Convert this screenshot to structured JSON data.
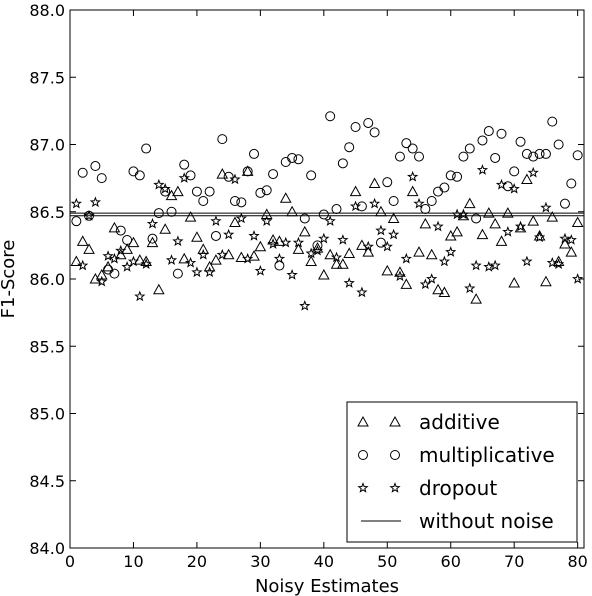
{
  "chart_data": {
    "type": "scatter",
    "xlabel": "Noisy Estimates",
    "ylabel": "F1-Score",
    "xlim": [
      0,
      81
    ],
    "ylim": [
      84.0,
      88.0
    ],
    "xticks": [
      0,
      10,
      20,
      30,
      40,
      50,
      60,
      70,
      80
    ],
    "yticks": [
      84.0,
      84.5,
      85.0,
      85.5,
      86.0,
      86.5,
      87.0,
      87.5,
      88.0
    ],
    "xtick_labels": [
      "0",
      "10",
      "20",
      "30",
      "40",
      "50",
      "60",
      "70",
      "80"
    ],
    "ytick_labels": [
      "84.0",
      "84.5",
      "85.0",
      "85.5",
      "86.0",
      "86.5",
      "87.0",
      "87.5",
      "88.0"
    ],
    "grid": false,
    "legend_position": "bottom-right",
    "reference_lines": [
      {
        "name": "without noise",
        "y": 86.49
      },
      {
        "name": "",
        "y": 86.47
      }
    ],
    "series": [
      {
        "name": "additive",
        "marker": "triangle",
        "x": [
          1,
          2,
          3,
          4,
          5,
          6,
          7,
          8,
          9,
          10,
          11,
          12,
          13,
          14,
          15,
          16,
          17,
          18,
          19,
          20,
          21,
          22,
          23,
          24,
          25,
          26,
          27,
          28,
          29,
          30,
          31,
          32,
          33,
          34,
          35,
          36,
          37,
          38,
          39,
          40,
          41,
          42,
          43,
          44,
          45,
          46,
          47,
          48,
          49,
          50,
          51,
          52,
          53,
          54,
          55,
          56,
          57,
          58,
          59,
          60,
          61,
          62,
          63,
          64,
          65,
          66,
          67,
          68,
          69,
          70,
          71,
          72,
          73,
          74,
          75,
          76,
          77,
          78,
          79,
          80
        ],
        "y": [
          86.13,
          86.28,
          86.22,
          86.0,
          86.03,
          86.09,
          86.38,
          86.18,
          86.22,
          86.27,
          86.14,
          86.13,
          86.27,
          85.92,
          86.37,
          86.62,
          86.65,
          86.15,
          86.46,
          86.31,
          86.22,
          86.09,
          86.14,
          86.78,
          86.18,
          86.42,
          86.16,
          86.8,
          86.17,
          86.24,
          86.48,
          86.29,
          86.28,
          86.6,
          86.5,
          86.22,
          86.35,
          86.13,
          86.23,
          86.03,
          86.18,
          86.11,
          86.11,
          86.19,
          86.65,
          86.25,
          86.2,
          86.71,
          86.5,
          86.06,
          86.45,
          86.05,
          85.96,
          86.65,
          86.2,
          86.41,
          86.18,
          85.92,
          85.9,
          86.32,
          86.35,
          86.47,
          86.56,
          85.85,
          86.33,
          86.49,
          86.41,
          86.28,
          86.49,
          85.97,
          86.38,
          86.74,
          86.43,
          86.32,
          85.98,
          86.46,
          86.13,
          86.26,
          86.2,
          86.42
        ]
      },
      {
        "name": "multiplicative",
        "marker": "circle",
        "x": [
          1,
          2,
          3,
          4,
          5,
          6,
          7,
          8,
          9,
          10,
          11,
          12,
          13,
          14,
          15,
          16,
          17,
          18,
          19,
          20,
          21,
          22,
          23,
          24,
          25,
          26,
          27,
          28,
          29,
          30,
          31,
          32,
          33,
          34,
          35,
          36,
          37,
          38,
          39,
          40,
          41,
          42,
          43,
          44,
          45,
          46,
          47,
          48,
          49,
          50,
          51,
          52,
          53,
          54,
          55,
          56,
          57,
          58,
          59,
          60,
          61,
          62,
          63,
          64,
          65,
          66,
          67,
          68,
          69,
          70,
          71,
          72,
          73,
          74,
          75,
          76,
          77,
          78,
          79,
          80
        ],
        "y": [
          86.43,
          86.79,
          86.47,
          86.84,
          86.75,
          86.07,
          86.04,
          86.36,
          86.29,
          86.8,
          86.77,
          86.97,
          86.3,
          86.49,
          86.65,
          86.5,
          86.04,
          86.85,
          86.77,
          86.65,
          86.58,
          86.65,
          86.32,
          87.04,
          86.76,
          86.58,
          86.57,
          86.8,
          86.93,
          86.64,
          86.66,
          86.78,
          86.1,
          86.87,
          86.9,
          86.89,
          86.45,
          86.77,
          86.25,
          86.48,
          87.21,
          86.52,
          86.86,
          86.98,
          87.13,
          86.54,
          87.16,
          87.09,
          86.27,
          86.72,
          86.58,
          86.91,
          87.01,
          86.97,
          86.91,
          86.52,
          86.58,
          86.65,
          86.68,
          86.77,
          86.76,
          86.91,
          86.97,
          86.45,
          87.03,
          87.1,
          86.9,
          87.08,
          86.69,
          86.8,
          87.02,
          86.93,
          86.91,
          86.93,
          86.93,
          87.17,
          87.0,
          86.56,
          86.71,
          86.92
        ]
      },
      {
        "name": "dropout",
        "marker": "star",
        "x": [
          1,
          2,
          3,
          4,
          5,
          6,
          7,
          8,
          9,
          10,
          11,
          12,
          13,
          14,
          15,
          16,
          17,
          18,
          19,
          20,
          21,
          22,
          23,
          24,
          25,
          26,
          27,
          28,
          29,
          30,
          31,
          32,
          33,
          34,
          35,
          36,
          37,
          38,
          39,
          40,
          41,
          42,
          43,
          44,
          45,
          46,
          47,
          48,
          49,
          50,
          51,
          52,
          53,
          54,
          55,
          56,
          57,
          58,
          59,
          60,
          61,
          62,
          63,
          64,
          65,
          66,
          67,
          68,
          69,
          70,
          71,
          72,
          73,
          74,
          75,
          76,
          77,
          78,
          79,
          80
        ],
        "y": [
          86.56,
          86.1,
          86.47,
          86.57,
          85.98,
          86.17,
          86.15,
          86.21,
          86.09,
          86.13,
          85.87,
          86.11,
          86.41,
          86.7,
          86.67,
          86.14,
          86.28,
          86.75,
          86.12,
          86.05,
          86.18,
          86.05,
          86.43,
          86.18,
          86.33,
          86.74,
          86.45,
          86.15,
          86.32,
          86.06,
          86.43,
          86.26,
          86.15,
          86.27,
          86.03,
          86.27,
          85.8,
          86.19,
          86.21,
          86.3,
          86.43,
          86.16,
          86.29,
          85.97,
          86.54,
          85.9,
          86.24,
          86.56,
          86.36,
          86.24,
          86.33,
          86.02,
          86.15,
          86.76,
          86.56,
          85.96,
          86.0,
          86.39,
          86.13,
          86.2,
          86.48,
          86.48,
          85.93,
          86.1,
          86.81,
          86.09,
          86.1,
          86.7,
          86.35,
          86.67,
          86.39,
          86.13,
          86.79,
          86.31,
          86.53,
          86.12,
          86.11,
          86.3,
          86.29,
          86.0
        ]
      }
    ],
    "legend": [
      {
        "label": "additive",
        "marker": "triangle"
      },
      {
        "label": "multiplicative",
        "marker": "circle"
      },
      {
        "label": "dropout",
        "marker": "star"
      },
      {
        "label": "without noise",
        "marker": "line"
      }
    ]
  }
}
